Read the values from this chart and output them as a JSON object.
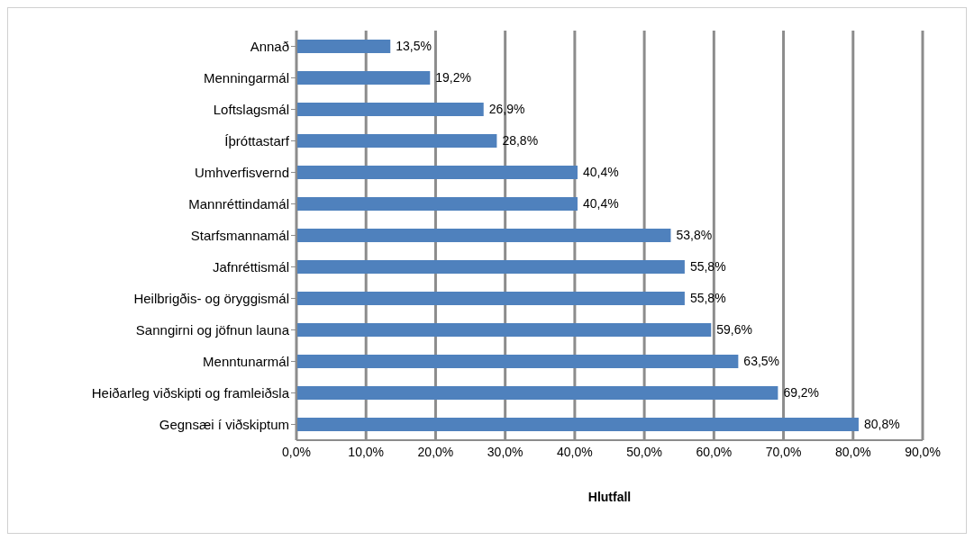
{
  "chart_data": {
    "type": "bar",
    "orientation": "horizontal",
    "xlabel": "Hlutfall",
    "categories": [
      "Annað",
      "Menningarmál",
      "Loftslagsmál",
      "Íþróttastarf",
      "Umhverfisvernd",
      "Mannréttindamál",
      "Starfsmannamál",
      "Jafnréttismál",
      "Heilbrigðis- og öryggismál",
      "Sanngirni og jöfnun launa",
      "Menntunarmál",
      "Heiðarleg viðskipti og framleiðsla",
      "Gegnsæi í viðskiptum"
    ],
    "values": [
      13.5,
      19.2,
      26.9,
      28.8,
      40.4,
      40.4,
      53.8,
      55.8,
      55.8,
      59.6,
      63.5,
      69.2,
      80.8
    ],
    "value_labels": [
      "13,5%",
      "19,2%",
      "26,9%",
      "28,8%",
      "40,4%",
      "40,4%",
      "53,8%",
      "55,8%",
      "55,8%",
      "59,6%",
      "63,5%",
      "69,2%",
      "80,8%"
    ],
    "color": "#4f81bd",
    "xlim": [
      0,
      90
    ],
    "xticks": [
      {
        "value": 0,
        "label": "0,0%"
      },
      {
        "value": 10,
        "label": "10,0%"
      },
      {
        "value": 20,
        "label": "20,0%"
      },
      {
        "value": 30,
        "label": "30,0%"
      },
      {
        "value": 40,
        "label": "40,0%"
      },
      {
        "value": 50,
        "label": "50,0%"
      },
      {
        "value": 60,
        "label": "60,0%"
      },
      {
        "value": 70,
        "label": "70,0%"
      },
      {
        "value": 80,
        "label": "80,0%"
      },
      {
        "value": 90,
        "label": "90,0%"
      }
    ],
    "grid": "x"
  }
}
